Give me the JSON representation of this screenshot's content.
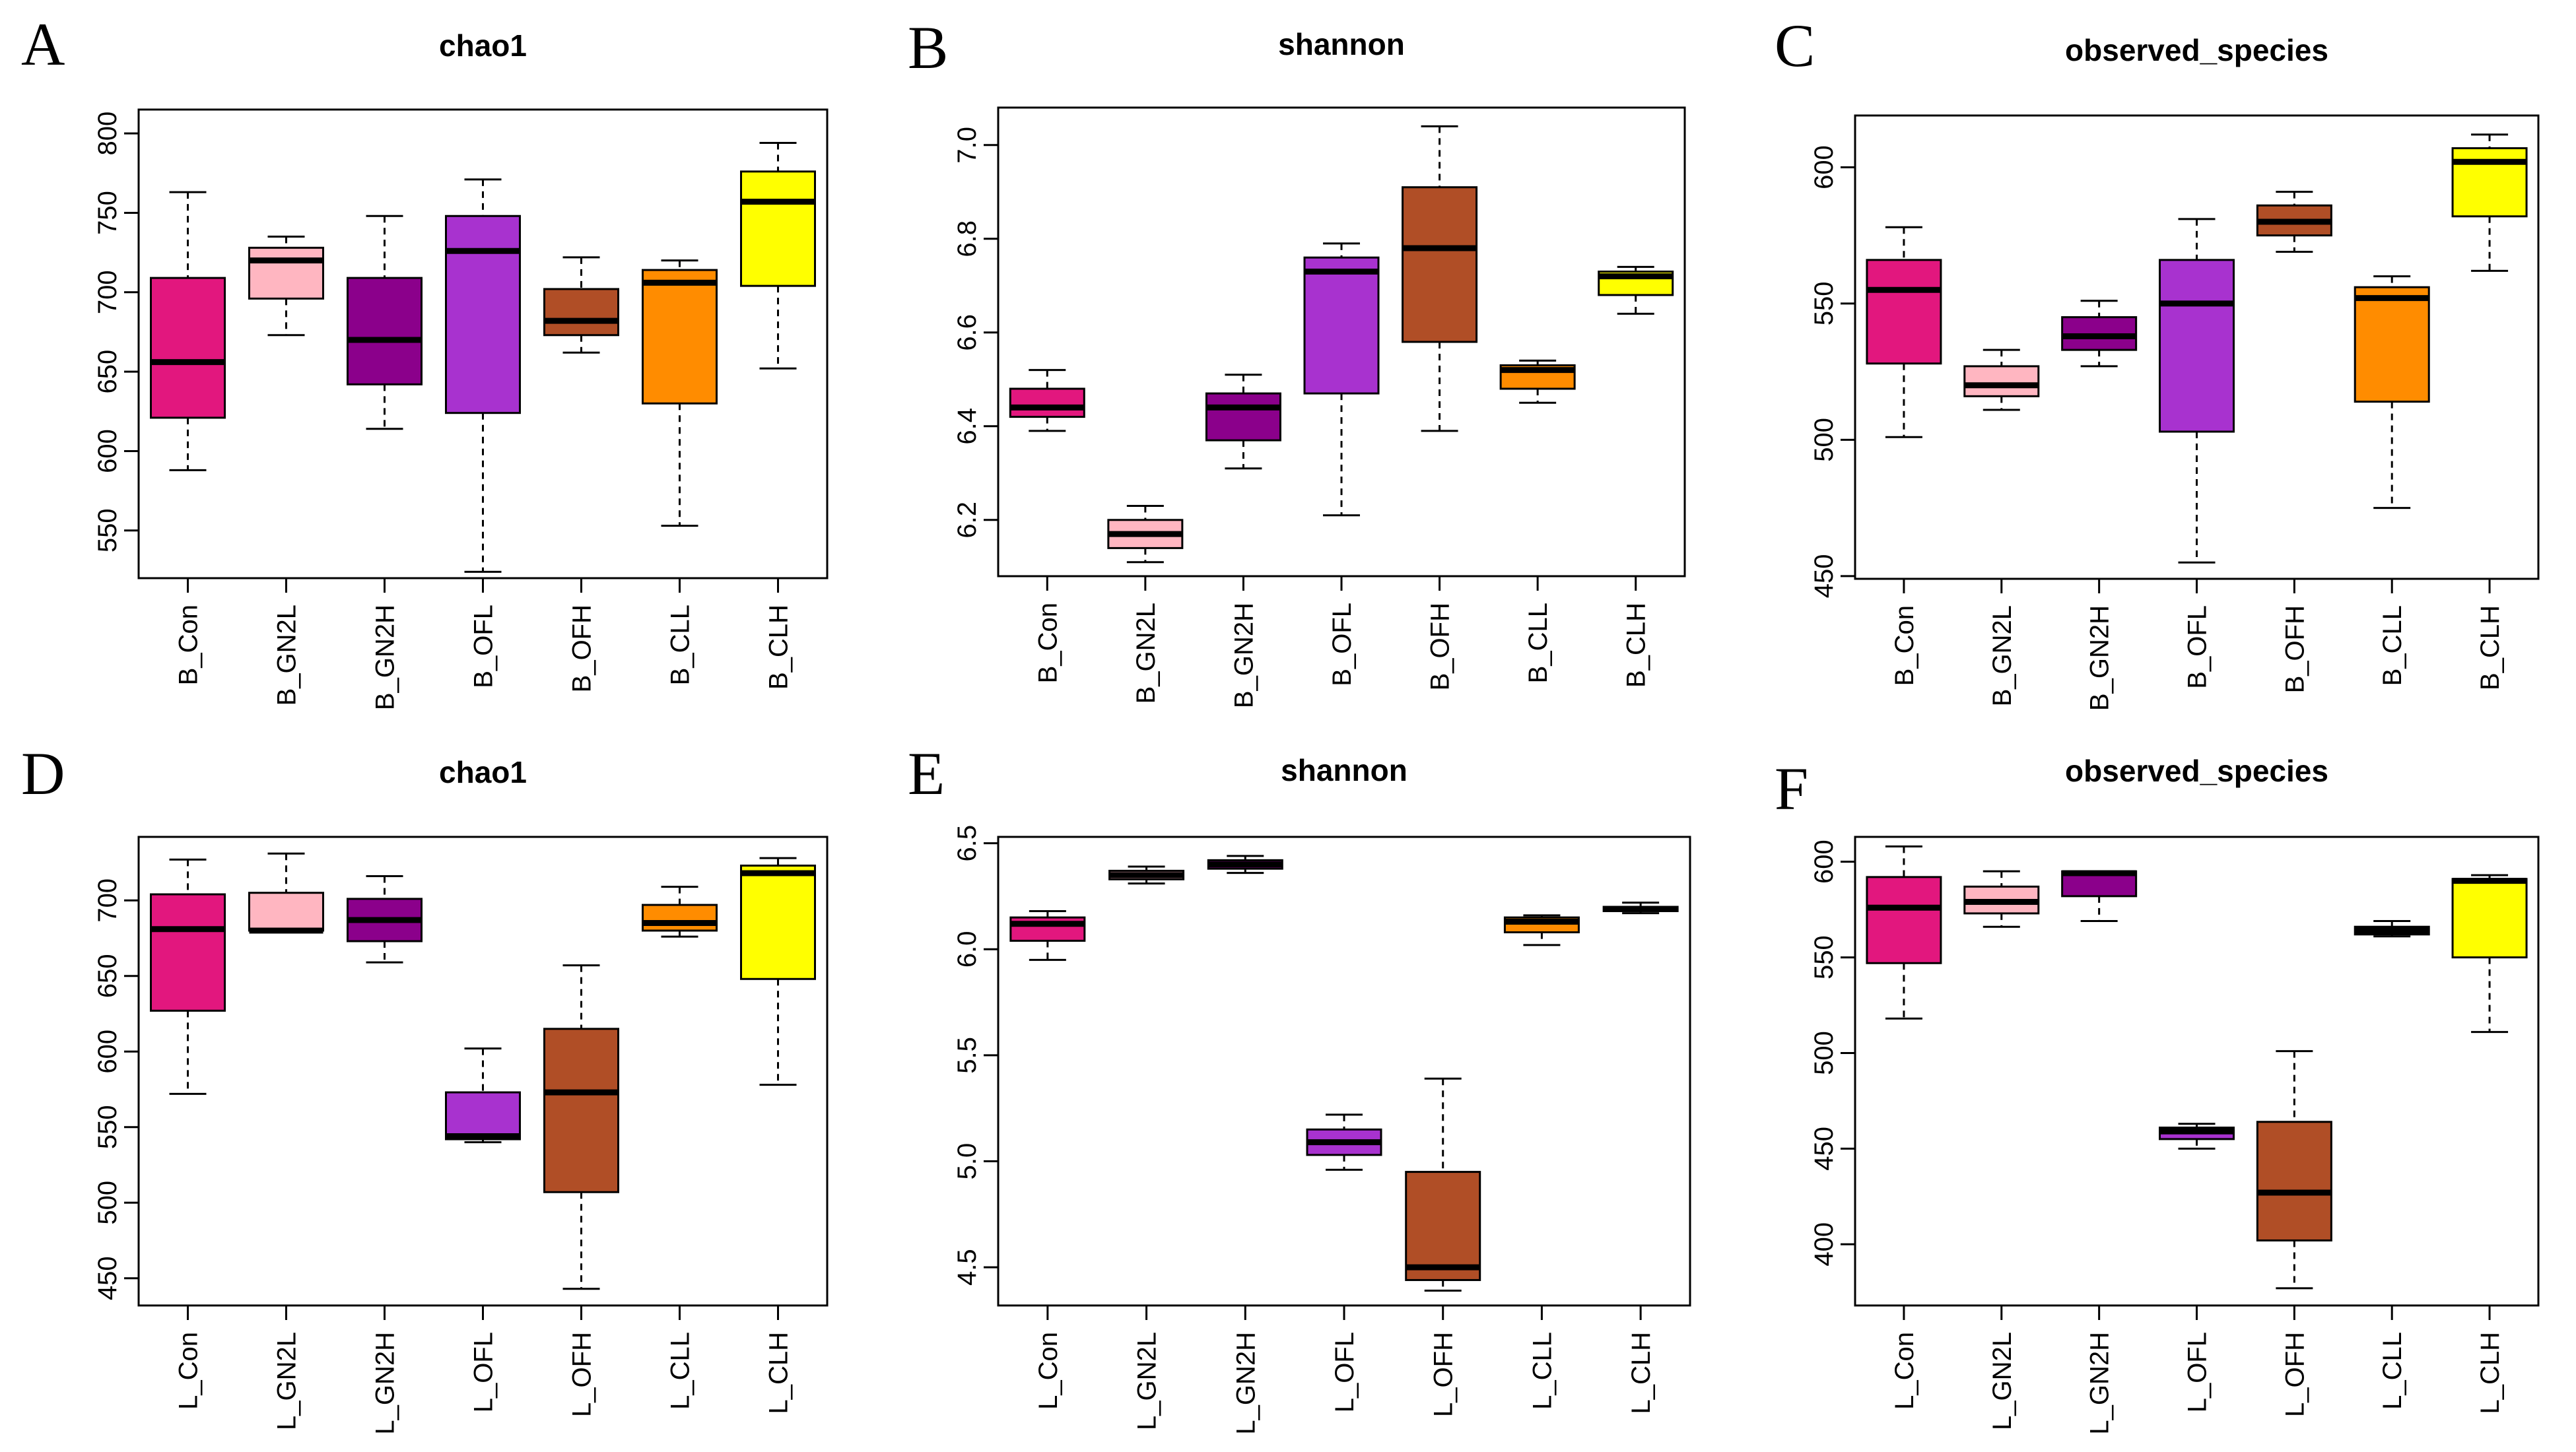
{
  "figure": {
    "colors": {
      "Con": "#e2177e",
      "GN2L": "#ffb6c1",
      "GN2H": "#8b008b",
      "OFL": "#a832cf",
      "OFH": "#b04e26",
      "CLL": "#ff8c00",
      "CLH": "#ffff00"
    }
  },
  "chart_data": [
    {
      "panel": "A",
      "type": "box",
      "title": "chao1",
      "categories": [
        "B_Con",
        "B_GN2L",
        "B_GN2H",
        "B_OFL",
        "B_OFH",
        "B_CLL",
        "B_CLH"
      ],
      "ylim": [
        520,
        815
      ],
      "yticks": [
        550,
        600,
        650,
        700,
        750,
        800
      ],
      "series": [
        {
          "name": "B_Con",
          "group": "Con",
          "min": 588,
          "q1": 621,
          "median": 656,
          "q3": 709,
          "max": 763
        },
        {
          "name": "B_GN2L",
          "group": "GN2L",
          "min": 673,
          "q1": 696,
          "median": 720,
          "q3": 728,
          "max": 735
        },
        {
          "name": "B_GN2H",
          "group": "GN2H",
          "min": 614,
          "q1": 642,
          "median": 670,
          "q3": 709,
          "max": 748
        },
        {
          "name": "B_OFL",
          "group": "OFL",
          "min": 524,
          "q1": 624,
          "median": 726,
          "q3": 748,
          "max": 771
        },
        {
          "name": "B_OFH",
          "group": "OFH",
          "min": 662,
          "q1": 673,
          "median": 682,
          "q3": 702,
          "max": 722
        },
        {
          "name": "B_CLL",
          "group": "CLL",
          "min": 553,
          "q1": 630,
          "median": 706,
          "q3": 714,
          "max": 720
        },
        {
          "name": "B_CLH",
          "group": "CLH",
          "min": 652,
          "q1": 704,
          "median": 757,
          "q3": 776,
          "max": 794
        }
      ]
    },
    {
      "panel": "B",
      "type": "box",
      "title": "shannon",
      "categories": [
        "B_Con",
        "B_GN2L",
        "B_GN2H",
        "B_OFL",
        "B_OFH",
        "B_CLL",
        "B_CLH"
      ],
      "ylim": [
        6.08,
        7.08
      ],
      "yticks": [
        6.2,
        6.4,
        6.6,
        6.8,
        7.0
      ],
      "series": [
        {
          "name": "B_Con",
          "group": "Con",
          "min": 6.39,
          "q1": 6.42,
          "median": 6.44,
          "q3": 6.48,
          "max": 6.52
        },
        {
          "name": "B_GN2L",
          "group": "GN2L",
          "min": 6.11,
          "q1": 6.14,
          "median": 6.17,
          "q3": 6.2,
          "max": 6.23
        },
        {
          "name": "B_GN2H",
          "group": "GN2H",
          "min": 6.31,
          "q1": 6.37,
          "median": 6.44,
          "q3": 6.47,
          "max": 6.51
        },
        {
          "name": "B_OFL",
          "group": "OFL",
          "min": 6.21,
          "q1": 6.47,
          "median": 6.73,
          "q3": 6.76,
          "max": 6.79
        },
        {
          "name": "B_OFH",
          "group": "OFH",
          "min": 6.39,
          "q1": 6.58,
          "median": 6.78,
          "q3": 6.91,
          "max": 7.04
        },
        {
          "name": "B_CLL",
          "group": "CLL",
          "min": 6.45,
          "q1": 6.48,
          "median": 6.52,
          "q3": 6.53,
          "max": 6.54
        },
        {
          "name": "B_CLH",
          "group": "CLH",
          "min": 6.64,
          "q1": 6.68,
          "median": 6.72,
          "q3": 6.73,
          "max": 6.74
        }
      ]
    },
    {
      "panel": "C",
      "type": "box",
      "title": "observed_species",
      "categories": [
        "B_Con",
        "B_GN2L",
        "B_GN2H",
        "B_OFL",
        "B_OFH",
        "B_CLL",
        "B_CLH"
      ],
      "ylim": [
        449,
        619
      ],
      "yticks": [
        450,
        500,
        550,
        600
      ],
      "series": [
        {
          "name": "B_Con",
          "group": "Con",
          "min": 501,
          "q1": 528,
          "median": 555,
          "q3": 566,
          "max": 578
        },
        {
          "name": "B_GN2L",
          "group": "GN2L",
          "min": 511,
          "q1": 516,
          "median": 520,
          "q3": 527,
          "max": 533
        },
        {
          "name": "B_GN2H",
          "group": "GN2H",
          "min": 527,
          "q1": 533,
          "median": 538,
          "q3": 545,
          "max": 551
        },
        {
          "name": "B_OFL",
          "group": "OFL",
          "min": 455,
          "q1": 503,
          "median": 550,
          "q3": 566,
          "max": 581
        },
        {
          "name": "B_OFH",
          "group": "OFH",
          "min": 569,
          "q1": 575,
          "median": 580,
          "q3": 586,
          "max": 591
        },
        {
          "name": "B_CLL",
          "group": "CLL",
          "min": 475,
          "q1": 514,
          "median": 552,
          "q3": 556,
          "max": 560
        },
        {
          "name": "B_CLH",
          "group": "CLH",
          "min": 562,
          "q1": 582,
          "median": 602,
          "q3": 607,
          "max": 612
        }
      ]
    },
    {
      "panel": "D",
      "type": "box",
      "title": "chao1",
      "categories": [
        "L_Con",
        "L_GN2L",
        "L_GN2H",
        "L_OFL",
        "L_OFH",
        "L_CLL",
        "L_CLH"
      ],
      "ylim": [
        432,
        742
      ],
      "yticks": [
        450,
        500,
        550,
        600,
        650,
        700
      ],
      "series": [
        {
          "name": "L_Con",
          "group": "Con",
          "min": 572,
          "q1": 627,
          "median": 681,
          "q3": 704,
          "max": 727
        },
        {
          "name": "L_GN2L",
          "group": "GN2L",
          "min": 679,
          "q1": 680,
          "median": 680,
          "q3": 705,
          "max": 731
        },
        {
          "name": "L_GN2H",
          "group": "GN2H",
          "min": 659,
          "q1": 673,
          "median": 687,
          "q3": 701,
          "max": 716
        },
        {
          "name": "L_OFL",
          "group": "OFL",
          "min": 540,
          "q1": 542,
          "median": 544,
          "q3": 573,
          "max": 602
        },
        {
          "name": "L_OFH",
          "group": "OFH",
          "min": 443,
          "q1": 507,
          "median": 573,
          "q3": 615,
          "max": 657
        },
        {
          "name": "L_CLL",
          "group": "CLL",
          "min": 676,
          "q1": 680,
          "median": 685,
          "q3": 697,
          "max": 709
        },
        {
          "name": "L_CLH",
          "group": "CLH",
          "min": 578,
          "q1": 648,
          "median": 718,
          "q3": 723,
          "max": 728
        }
      ]
    },
    {
      "panel": "E",
      "type": "box",
      "title": "shannon",
      "categories": [
        "L_Con",
        "L_GN2L",
        "L_GN2H",
        "L_OFL",
        "L_OFH",
        "L_CLL",
        "L_CLH"
      ],
      "ylim": [
        4.32,
        6.53
      ],
      "yticks": [
        4.5,
        5.0,
        5.5,
        6.0,
        6.5
      ],
      "series": [
        {
          "name": "L_Con",
          "group": "Con",
          "min": 5.95,
          "q1": 6.04,
          "median": 6.12,
          "q3": 6.15,
          "max": 6.18
        },
        {
          "name": "L_GN2L",
          "group": "GN2L",
          "min": 6.31,
          "q1": 6.33,
          "median": 6.35,
          "q3": 6.37,
          "max": 6.39
        },
        {
          "name": "L_GN2H",
          "group": "GN2H",
          "min": 6.36,
          "q1": 6.38,
          "median": 6.4,
          "q3": 6.42,
          "max": 6.44
        },
        {
          "name": "L_OFL",
          "group": "OFL",
          "min": 4.96,
          "q1": 5.03,
          "median": 5.09,
          "q3": 5.15,
          "max": 5.22
        },
        {
          "name": "L_OFH",
          "group": "OFH",
          "min": 4.39,
          "q1": 4.44,
          "median": 4.5,
          "q3": 4.95,
          "max": 5.39
        },
        {
          "name": "L_CLL",
          "group": "CLL",
          "min": 6.02,
          "q1": 6.08,
          "median": 6.13,
          "q3": 6.15,
          "max": 6.16
        },
        {
          "name": "L_CLH",
          "group": "CLH",
          "min": 6.17,
          "q1": 6.18,
          "median": 6.19,
          "q3": 6.2,
          "max": 6.22
        }
      ]
    },
    {
      "panel": "F",
      "type": "box",
      "title": "observed_species",
      "categories": [
        "L_Con",
        "L_GN2L",
        "L_GN2H",
        "L_OFL",
        "L_OFH",
        "L_CLL",
        "L_CLH"
      ],
      "ylim": [
        368,
        613
      ],
      "yticks": [
        400,
        450,
        500,
        550,
        600
      ],
      "series": [
        {
          "name": "L_Con",
          "group": "Con",
          "min": 518,
          "q1": 547,
          "median": 576,
          "q3": 592,
          "max": 608
        },
        {
          "name": "L_GN2L",
          "group": "GN2L",
          "min": 566,
          "q1": 573,
          "median": 579,
          "q3": 587,
          "max": 595
        },
        {
          "name": "L_GN2H",
          "group": "GN2H",
          "min": 569,
          "q1": 582,
          "median": 594,
          "q3": 595,
          "max": 595
        },
        {
          "name": "L_OFL",
          "group": "OFL",
          "min": 450,
          "q1": 455,
          "median": 459,
          "q3": 461,
          "max": 463
        },
        {
          "name": "L_OFH",
          "group": "OFH",
          "min": 377,
          "q1": 402,
          "median": 427,
          "q3": 464,
          "max": 501
        },
        {
          "name": "L_CLL",
          "group": "CLL",
          "min": 561,
          "q1": 562,
          "median": 564,
          "q3": 566,
          "max": 569
        },
        {
          "name": "L_CLH",
          "group": "CLH",
          "min": 511,
          "q1": 550,
          "median": 590,
          "q3": 591,
          "max": 593
        }
      ]
    }
  ]
}
